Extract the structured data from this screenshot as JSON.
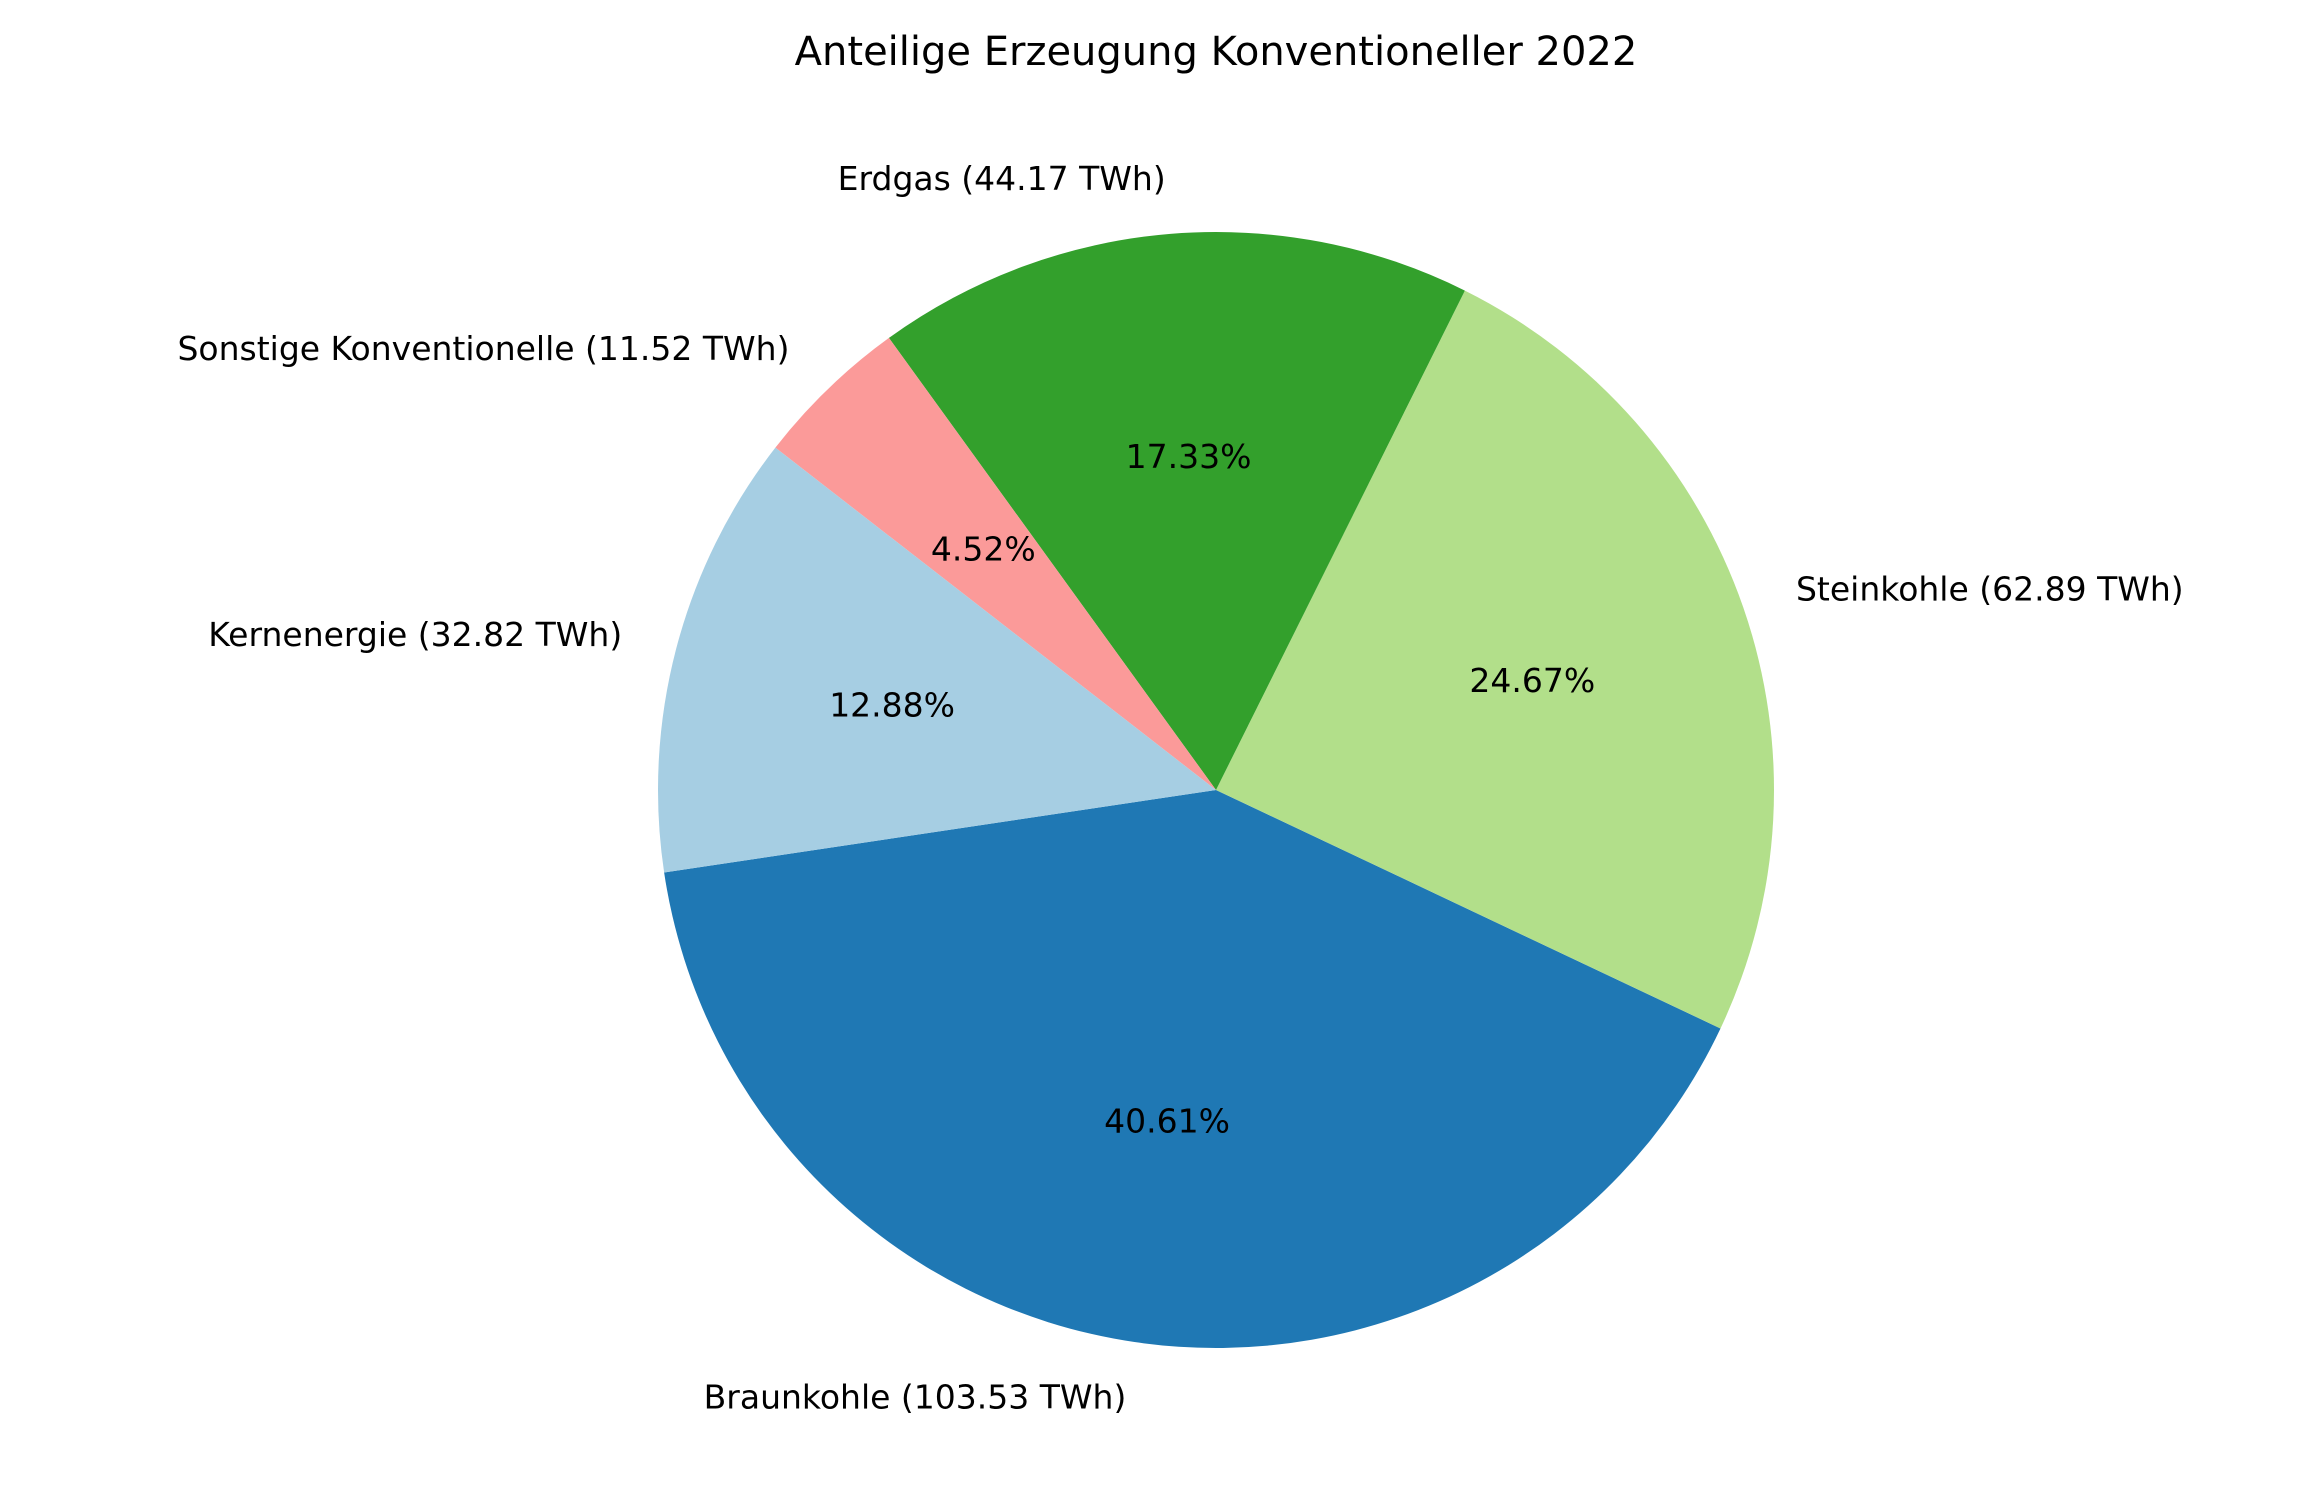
{
  "chart_data": {
    "type": "pie",
    "title": "Anteilige Erzeugung Konventioneller 2022",
    "unit": "TWh",
    "start_angle_deg": 188.5,
    "direction": "counterclockwise",
    "slices": [
      {
        "label": "Braunkohle (103.53 TWh)",
        "value": 103.53,
        "percent_label": "40.61%",
        "color": "#1f78b4"
      },
      {
        "label": "Steinkohle (62.89 TWh)",
        "value": 62.89,
        "percent_label": "24.67%",
        "color": "#b2df8a"
      },
      {
        "label": "Erdgas (44.17 TWh)",
        "value": 44.17,
        "percent_label": "17.33%",
        "color": "#33a02c"
      },
      {
        "label": "Sonstige Konventionelle (11.52 TWh)",
        "value": 11.52,
        "percent_label": "4.52%",
        "color": "#fb9a99"
      },
      {
        "label": "Kernenergie (32.82 TWh)",
        "value": 32.82,
        "percent_label": "12.88%",
        "color": "#a6cee3"
      }
    ]
  }
}
